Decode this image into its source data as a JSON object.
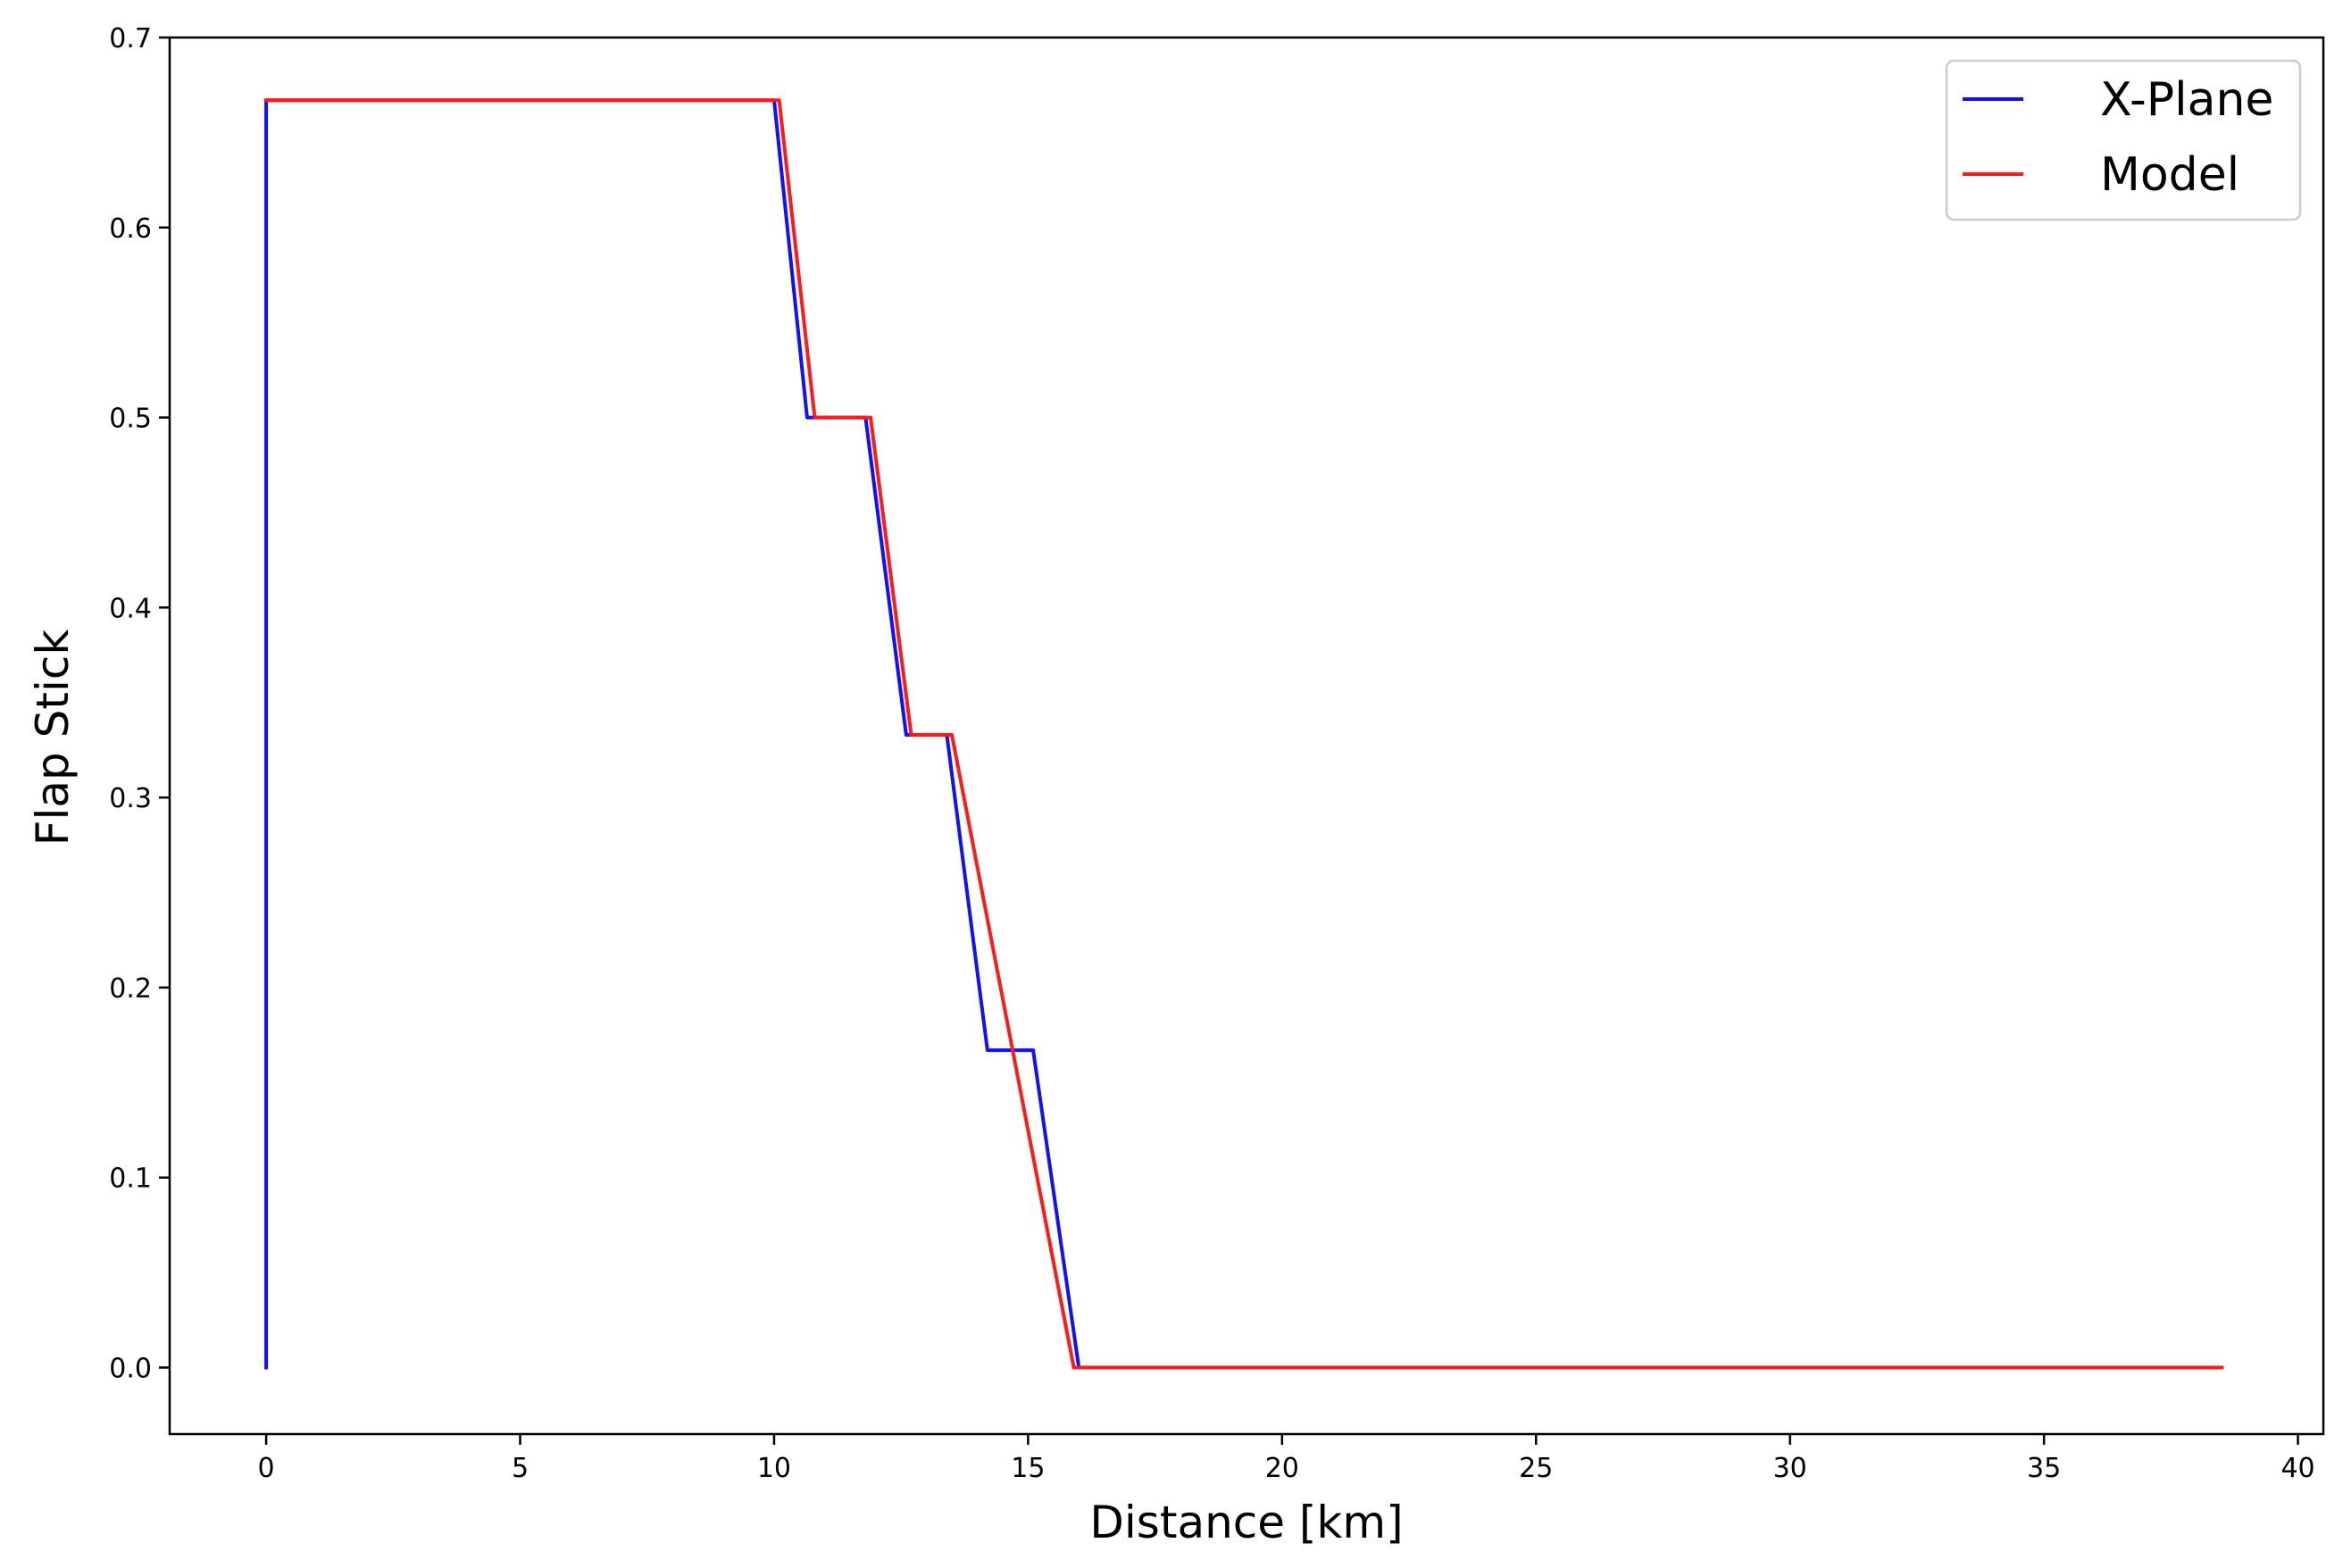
{
  "chart_data": {
    "type": "line",
    "title": "",
    "xlabel": "Distance [km]",
    "ylabel": "Flap Stick",
    "xlim": [
      -1.9,
      40.5
    ],
    "ylim": [
      -0.035,
      0.7
    ],
    "xticks": [
      0,
      5,
      10,
      15,
      20,
      25,
      30,
      35,
      40
    ],
    "xtick_labels": [
      "0",
      "5",
      "10",
      "15",
      "20",
      "25",
      "30",
      "35",
      "40"
    ],
    "yticks": [
      0.0,
      0.1,
      0.2,
      0.3,
      0.4,
      0.5,
      0.6,
      0.7
    ],
    "ytick_labels": [
      "0.0",
      "0.1",
      "0.2",
      "0.3",
      "0.4",
      "0.5",
      "0.6",
      "0.7"
    ],
    "grid": false,
    "legend_position": "top-right",
    "series": [
      {
        "name": "X-Plane",
        "color": "#1010ff",
        "x": [
          0.0,
          0.0,
          10.0,
          10.65,
          11.8,
          12.6,
          13.4,
          14.2,
          15.1,
          16.0,
          38.5
        ],
        "y": [
          0.0,
          0.667,
          0.667,
          0.5,
          0.5,
          0.333,
          0.333,
          0.167,
          0.167,
          0.0,
          0.0
        ]
      },
      {
        "name": "Model",
        "color": "#ff1a1a",
        "x": [
          0.0,
          10.1,
          10.8,
          11.9,
          12.7,
          13.5,
          15.9,
          38.5
        ],
        "y": [
          0.667,
          0.667,
          0.5,
          0.5,
          0.333,
          0.333,
          0.0,
          0.0
        ]
      }
    ]
  }
}
